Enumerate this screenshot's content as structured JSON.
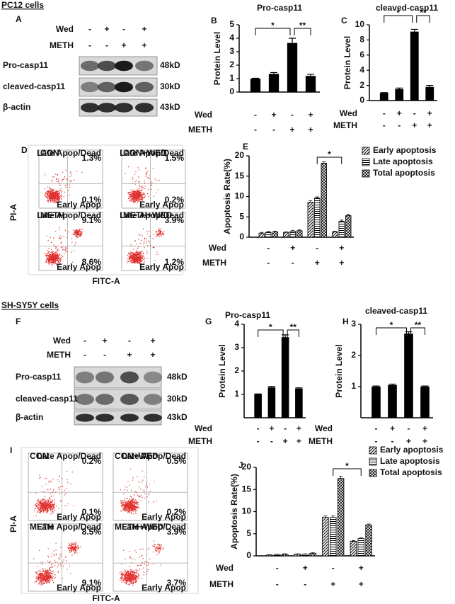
{
  "sections": [
    {
      "title": "PC12  cells"
    },
    {
      "title": "SH-SY5Y cells"
    }
  ],
  "blots": [
    {
      "letter": "A",
      "conditions": [
        {
          "name": "Wed",
          "signs": [
            "-",
            "+",
            "-",
            "+"
          ]
        },
        {
          "name": "METH",
          "signs": [
            "-",
            "-",
            "+",
            "+"
          ]
        }
      ],
      "rows": [
        {
          "name": "Pro-casp11",
          "size": "48kD"
        },
        {
          "name": "cleaved-casp11",
          "size": "30kD"
        },
        {
          "name": "β-actin",
          "size": "43kD"
        }
      ]
    },
    {
      "letter": "F",
      "conditions": [
        {
          "name": "Wed",
          "signs": [
            "-",
            "+",
            "-",
            "+"
          ]
        },
        {
          "name": "METH",
          "signs": [
            "-",
            "-",
            "+",
            "+"
          ]
        }
      ],
      "rows": [
        {
          "name": "Pro-casp11",
          "size": "48kD"
        },
        {
          "name": "cleaved-casp11",
          "size": "30kD"
        },
        {
          "name": "β-actin",
          "size": "43kD"
        }
      ]
    }
  ],
  "flow": [
    {
      "letter": "D",
      "ylabel": "PI-A",
      "xlabel": "FITC-A",
      "plots": [
        {
          "label": "CON",
          "late_label": "Late Apop/Dead",
          "late": "1.3%",
          "early": "0.1%",
          "early_label": "Early Apop"
        },
        {
          "label": "CON+WED",
          "late_label": "Late Apop/Dead",
          "late": "1.5%",
          "early": "0.2%",
          "early_label": "Early Apop"
        },
        {
          "label": "METH",
          "late_label": "Late Apop/Dead",
          "late": "9.1%",
          "early": "8.6%",
          "early_label": "Early Apop"
        },
        {
          "label": "METH+WED",
          "late_label": "Late Apop/Dead",
          "late": "3.9%",
          "early": "1.2%",
          "early_label": "Early Apop"
        }
      ]
    },
    {
      "letter": "I",
      "ylabel": "PI-A",
      "xlabel": "FITC-A",
      "plots": [
        {
          "label": "CON",
          "late_label": "Late Apop/Dead",
          "late": "0.2%",
          "early": "0.1%",
          "early_label": "Early Apop"
        },
        {
          "label": "CON+WED",
          "late_label": "Late Apop/Dead",
          "late": "0.5%",
          "early": "0.2%",
          "early_label": "Early Apop"
        },
        {
          "label": "METH",
          "late_label": "Late Apop/Dead",
          "late": "8.5%",
          "early": "9.1%",
          "early_label": "Early Apop"
        },
        {
          "label": "METH+WED",
          "late_label": "Late Apop/Dead",
          "late": "3.9%",
          "early": "3.7%",
          "early_label": "Early Apop"
        }
      ]
    }
  ],
  "chart_data": [
    {
      "letter": "B",
      "type": "bar",
      "title": "Pro-casp11",
      "ylabel": "Protein Level",
      "values": [
        1,
        1.35,
        3.65,
        1.2
      ],
      "errors": [
        0.03,
        0.1,
        0.35,
        0.12
      ],
      "color": "#000000",
      "ylim": [
        0,
        5
      ],
      "yticks": [
        0,
        1,
        2,
        3,
        4,
        5
      ],
      "annotations": [
        "*",
        "**"
      ],
      "conditions": [
        {
          "name": "Wed",
          "signs": [
            "-",
            "+",
            "-",
            "+"
          ]
        },
        {
          "name": "METH",
          "signs": [
            "-",
            "-",
            "+",
            "+"
          ]
        }
      ]
    },
    {
      "letter": "C",
      "type": "bar",
      "title": "cleaved-casp11",
      "ylabel": "Protein Level",
      "values": [
        1,
        1.5,
        9.1,
        1.8
      ],
      "errors": [
        0.05,
        0.15,
        0.3,
        0.2
      ],
      "color": "#000000",
      "ylim": [
        0,
        10
      ],
      "yticks": [
        0,
        2,
        4,
        6,
        8,
        10
      ],
      "annotations": [
        "*",
        "**"
      ],
      "conditions": [
        {
          "name": "Wed",
          "signs": [
            "-",
            "+",
            "-",
            "+"
          ]
        },
        {
          "name": "METH",
          "signs": [
            "-",
            "-",
            "+",
            "+"
          ]
        }
      ]
    },
    {
      "letter": "E",
      "type": "grouped_bar",
      "ylabel": "Apoptosis Rate(%)",
      "legend": "upper right",
      "ylim": [
        0,
        20
      ],
      "yticks": [
        0,
        5,
        10,
        15,
        20
      ],
      "annotations": [
        "*"
      ],
      "series": [
        {
          "name": "Early apoptosis",
          "color": "#000000",
          "values": [
            1.0,
            1.2,
            8.6,
            1.3
          ],
          "errors": [
            0.2,
            0.1,
            0.4,
            0.2
          ]
        },
        {
          "name": "Late apoptosis",
          "color": "#000000",
          "values": [
            1.2,
            1.5,
            9.6,
            3.9
          ],
          "errors": [
            0.2,
            0.2,
            0.3,
            0.3
          ]
        },
        {
          "name": "Total apoptosis",
          "color": "#000000",
          "values": [
            1.3,
            1.6,
            18.2,
            5.3
          ],
          "errors": [
            0.2,
            0.2,
            0.3,
            0.3
          ]
        }
      ],
      "conditions": [
        {
          "name": "Wed",
          "signs": [
            "-",
            "+",
            "-",
            "+"
          ]
        },
        {
          "name": "METH",
          "signs": [
            "-",
            "-",
            "+",
            "+"
          ]
        }
      ]
    },
    {
      "letter": "G",
      "type": "bar",
      "title": "Pro-casp11",
      "ylabel": "Protein Level",
      "values": [
        1,
        1.3,
        3.45,
        1.25
      ],
      "errors": [
        0.02,
        0.04,
        0.1,
        0.03
      ],
      "color": "#000000",
      "ylim": [
        0,
        4
      ],
      "yticks": [
        1,
        2,
        3,
        4
      ],
      "annotations": [
        "*",
        "**"
      ],
      "conditions": [
        {
          "name": "Wed",
          "signs": [
            "-",
            "+",
            "-",
            "+"
          ]
        },
        {
          "name": "METH",
          "signs": [
            "-",
            "-",
            "+",
            "+"
          ]
        }
      ]
    },
    {
      "letter": "H",
      "type": "bar",
      "title": "cleaved-casp11",
      "ylabel": "Protein Level",
      "values": [
        1,
        1.05,
        2.7,
        1.0
      ],
      "errors": [
        0.02,
        0.03,
        0.06,
        0.02
      ],
      "color": "#000000",
      "ylim": [
        0,
        3
      ],
      "yticks": [
        1,
        2,
        3
      ],
      "annotations": [
        "*",
        "**"
      ],
      "conditions": [
        {
          "name": "Wed",
          "signs": [
            "-",
            "+",
            "-",
            "+"
          ]
        },
        {
          "name": "METH",
          "signs": [
            "-",
            "-",
            "+",
            "+"
          ]
        }
      ]
    },
    {
      "letter": "J",
      "type": "grouped_bar",
      "ylabel": "Apoptosis Rate(%)",
      "legend": "upper right",
      "ylim": [
        0,
        20
      ],
      "yticks": [
        0,
        5,
        10,
        15,
        20
      ],
      "annotations": [
        "*"
      ],
      "series": [
        {
          "name": "Early apoptosis",
          "color": "#000000",
          "values": [
            0.2,
            0.4,
            8.7,
            3.3
          ],
          "errors": [
            0.05,
            0.05,
            0.3,
            0.15
          ]
        },
        {
          "name": "Late apoptosis",
          "color": "#000000",
          "values": [
            0.3,
            0.4,
            8.7,
            3.9
          ],
          "errors": [
            0.05,
            0.05,
            0.3,
            0.15
          ]
        },
        {
          "name": "Total apoptosis",
          "color": "#000000",
          "values": [
            0.4,
            0.6,
            17.5,
            7.0
          ],
          "errors": [
            0.05,
            0.1,
            0.5,
            0.2
          ]
        }
      ],
      "conditions": [
        {
          "name": "Wed",
          "signs": [
            "-",
            "+",
            "-",
            "+"
          ]
        },
        {
          "name": "METH",
          "signs": [
            "-",
            "-",
            "+",
            "+"
          ]
        }
      ]
    }
  ]
}
